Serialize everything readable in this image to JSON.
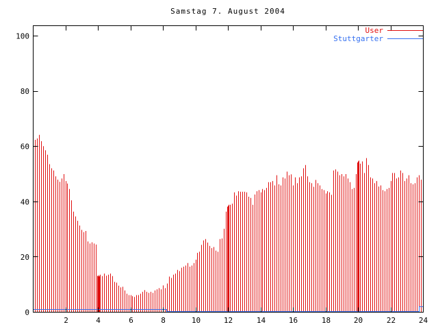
{
  "title": "Samstag 7. August 2004",
  "legend": {
    "position": "top-right",
    "items": [
      {
        "label": "User",
        "color": "#e01010"
      },
      {
        "label": "Stuttgarter",
        "color": "#3570f0"
      }
    ]
  },
  "axes": {
    "x_tick_labels": [
      "2",
      "4",
      "6",
      "8",
      "10",
      "12",
      "14",
      "16",
      "18",
      "20",
      "22",
      "24"
    ],
    "x_tick_values": [
      2,
      4,
      6,
      8,
      10,
      12,
      14,
      16,
      18,
      20,
      22,
      24
    ],
    "y_tick_labels": [
      "0",
      "20",
      "40",
      "60",
      "80",
      "100"
    ],
    "y_tick_values": [
      0,
      20,
      40,
      60,
      80,
      100
    ]
  },
  "chart_data": {
    "type": "bar",
    "subtype": "impulses",
    "title": "Samstag 7. August 2004",
    "xlabel": "",
    "ylabel": "",
    "xlim": [
      0,
      24
    ],
    "ylim": [
      0,
      103.7
    ],
    "grid": false,
    "legend_position": "top-right-inside",
    "border_color": "#000000",
    "background": "#ffffff",
    "series": [
      {
        "name": "User",
        "style": "impulses",
        "color": "#e01010",
        "points": [
          [
            0.125,
            62.4
          ],
          [
            0.25,
            62.9
          ],
          [
            0.375,
            64.2
          ],
          [
            0.5,
            61.9
          ],
          [
            0.625,
            60.1
          ],
          [
            0.75,
            58.6
          ],
          [
            0.875,
            57.0
          ],
          [
            1.0,
            53.6
          ],
          [
            1.125,
            52.1
          ],
          [
            1.25,
            51.3
          ],
          [
            1.375,
            49.2
          ],
          [
            1.5,
            48.0
          ],
          [
            1.625,
            47.2
          ],
          [
            1.75,
            48.4
          ],
          [
            1.875,
            50.0
          ],
          [
            2.0,
            47.5
          ],
          [
            2.125,
            46.6
          ],
          [
            2.25,
            44.6
          ],
          [
            2.375,
            40.5
          ],
          [
            2.5,
            36.4
          ],
          [
            2.625,
            34.7
          ],
          [
            2.75,
            33.1
          ],
          [
            2.875,
            31.4
          ],
          [
            3.0,
            29.8
          ],
          [
            3.125,
            29.0
          ],
          [
            3.25,
            29.4
          ],
          [
            3.375,
            25.6
          ],
          [
            3.5,
            24.9
          ],
          [
            3.625,
            25.3
          ],
          [
            3.75,
            24.9
          ],
          [
            3.875,
            24.5
          ],
          [
            3.96,
            13.2
          ],
          [
            4.0,
            13.0
          ],
          [
            4.04,
            13.4
          ],
          [
            4.08,
            13.0
          ],
          [
            4.125,
            13.6
          ],
          [
            4.25,
            13.1
          ],
          [
            4.375,
            14.0
          ],
          [
            4.5,
            13.2
          ],
          [
            4.625,
            13.6
          ],
          [
            4.75,
            14.0
          ],
          [
            4.875,
            13.1
          ],
          [
            5.0,
            11.0
          ],
          [
            5.125,
            10.7
          ],
          [
            5.25,
            9.6
          ],
          [
            5.375,
            9.0
          ],
          [
            5.5,
            9.2
          ],
          [
            5.625,
            7.9
          ],
          [
            5.75,
            6.7
          ],
          [
            5.875,
            6.2
          ],
          [
            6.0,
            6.2
          ],
          [
            6.125,
            5.8
          ],
          [
            6.25,
            5.5
          ],
          [
            6.375,
            6.2
          ],
          [
            6.5,
            6.2
          ],
          [
            6.625,
            6.7
          ],
          [
            6.75,
            7.4
          ],
          [
            6.875,
            8.0
          ],
          [
            7.0,
            7.4
          ],
          [
            7.125,
            7.0
          ],
          [
            7.25,
            7.4
          ],
          [
            7.375,
            7.0
          ],
          [
            7.5,
            7.9
          ],
          [
            7.625,
            8.3
          ],
          [
            7.75,
            8.7
          ],
          [
            7.875,
            8.3
          ],
          [
            8.0,
            9.7
          ],
          [
            8.125,
            8.7
          ],
          [
            8.25,
            10.4
          ],
          [
            8.375,
            12.9
          ],
          [
            8.5,
            12.4
          ],
          [
            8.625,
            13.6
          ],
          [
            8.75,
            14.0
          ],
          [
            8.875,
            15.3
          ],
          [
            9.0,
            14.9
          ],
          [
            9.125,
            16.1
          ],
          [
            9.25,
            16.5
          ],
          [
            9.375,
            16.9
          ],
          [
            9.5,
            17.8
          ],
          [
            9.625,
            16.5
          ],
          [
            9.75,
            16.9
          ],
          [
            9.875,
            17.8
          ],
          [
            10.0,
            19.0
          ],
          [
            10.125,
            21.5
          ],
          [
            10.25,
            21.9
          ],
          [
            10.375,
            24.4
          ],
          [
            10.5,
            26.0
          ],
          [
            10.625,
            26.5
          ],
          [
            10.75,
            25.2
          ],
          [
            10.875,
            24.0
          ],
          [
            11.0,
            23.2
          ],
          [
            11.125,
            23.6
          ],
          [
            11.25,
            22.3
          ],
          [
            11.375,
            21.9
          ],
          [
            11.5,
            26.5
          ],
          [
            11.625,
            26.7
          ],
          [
            11.75,
            30.2
          ],
          [
            11.875,
            36.4
          ],
          [
            11.96,
            38.2
          ],
          [
            12.0,
            38.5
          ],
          [
            12.04,
            38.9
          ],
          [
            12.125,
            38.9
          ],
          [
            12.25,
            39.3
          ],
          [
            12.375,
            43.4
          ],
          [
            12.5,
            42.2
          ],
          [
            12.625,
            43.8
          ],
          [
            12.75,
            43.6
          ],
          [
            12.875,
            43.6
          ],
          [
            13.0,
            43.6
          ],
          [
            13.125,
            43.4
          ],
          [
            13.25,
            41.8
          ],
          [
            13.375,
            41.4
          ],
          [
            13.5,
            38.9
          ],
          [
            13.625,
            42.6
          ],
          [
            13.75,
            43.8
          ],
          [
            13.875,
            44.2
          ],
          [
            14.0,
            43.4
          ],
          [
            14.125,
            44.6
          ],
          [
            14.25,
            44.2
          ],
          [
            14.375,
            45.0
          ],
          [
            14.5,
            47.1
          ],
          [
            14.625,
            47.1
          ],
          [
            14.75,
            47.5
          ],
          [
            14.875,
            45.9
          ],
          [
            15.0,
            49.6
          ],
          [
            15.125,
            46.3
          ],
          [
            15.25,
            45.9
          ],
          [
            15.375,
            48.8
          ],
          [
            15.5,
            48.4
          ],
          [
            15.625,
            50.9
          ],
          [
            15.75,
            49.6
          ],
          [
            15.875,
            49.9
          ],
          [
            16.0,
            45.9
          ],
          [
            16.125,
            48.8
          ],
          [
            16.25,
            46.7
          ],
          [
            16.375,
            48.8
          ],
          [
            16.5,
            49.2
          ],
          [
            16.625,
            52.1
          ],
          [
            16.75,
            53.3
          ],
          [
            16.875,
            49.2
          ],
          [
            17.0,
            47.1
          ],
          [
            17.125,
            46.7
          ],
          [
            17.25,
            45.4
          ],
          [
            17.375,
            47.9
          ],
          [
            17.5,
            46.7
          ],
          [
            17.625,
            45.9
          ],
          [
            17.75,
            44.6
          ],
          [
            17.875,
            44.2
          ],
          [
            18.0,
            43.0
          ],
          [
            18.125,
            43.8
          ],
          [
            18.25,
            43.4
          ],
          [
            18.375,
            42.5
          ],
          [
            18.5,
            51.3
          ],
          [
            18.625,
            51.7
          ],
          [
            18.75,
            50.9
          ],
          [
            18.875,
            49.6
          ],
          [
            19.0,
            50.0
          ],
          [
            19.125,
            49.2
          ],
          [
            19.25,
            50.0
          ],
          [
            19.375,
            48.4
          ],
          [
            19.5,
            47.1
          ],
          [
            19.625,
            44.6
          ],
          [
            19.75,
            45.0
          ],
          [
            19.875,
            50.0
          ],
          [
            19.96,
            54.2
          ],
          [
            20.0,
            54.6
          ],
          [
            20.04,
            54.9
          ],
          [
            20.125,
            53.8
          ],
          [
            20.25,
            54.6
          ],
          [
            20.375,
            50.4
          ],
          [
            20.5,
            55.8
          ],
          [
            20.625,
            53.3
          ],
          [
            20.75,
            48.8
          ],
          [
            20.875,
            48.4
          ],
          [
            21.0,
            46.7
          ],
          [
            21.125,
            47.5
          ],
          [
            21.25,
            45.5
          ],
          [
            21.375,
            45.9
          ],
          [
            21.5,
            44.2
          ],
          [
            21.625,
            43.8
          ],
          [
            21.75,
            44.6
          ],
          [
            21.875,
            45.0
          ],
          [
            22.0,
            47.5
          ],
          [
            22.125,
            50.4
          ],
          [
            22.25,
            50.4
          ],
          [
            22.375,
            48.4
          ],
          [
            22.5,
            48.8
          ],
          [
            22.625,
            51.3
          ],
          [
            22.75,
            50.4
          ],
          [
            22.875,
            47.5
          ],
          [
            23.0,
            48.4
          ],
          [
            23.125,
            49.6
          ],
          [
            23.25,
            46.7
          ],
          [
            23.375,
            46.3
          ],
          [
            23.5,
            46.7
          ],
          [
            23.625,
            48.8
          ],
          [
            23.75,
            49.6
          ],
          [
            23.875,
            48.0
          ],
          [
            24.0,
            50.8
          ]
        ]
      },
      {
        "name": "Stuttgarter",
        "style": "steps",
        "color": "#3570f0",
        "segments": [
          {
            "from": 0,
            "to": 8.2,
            "value": 1.0
          },
          {
            "from": 8.2,
            "to": 23.75,
            "value": 0.25
          },
          {
            "from": 23.75,
            "to": 24,
            "value": 2.0
          }
        ]
      }
    ]
  }
}
